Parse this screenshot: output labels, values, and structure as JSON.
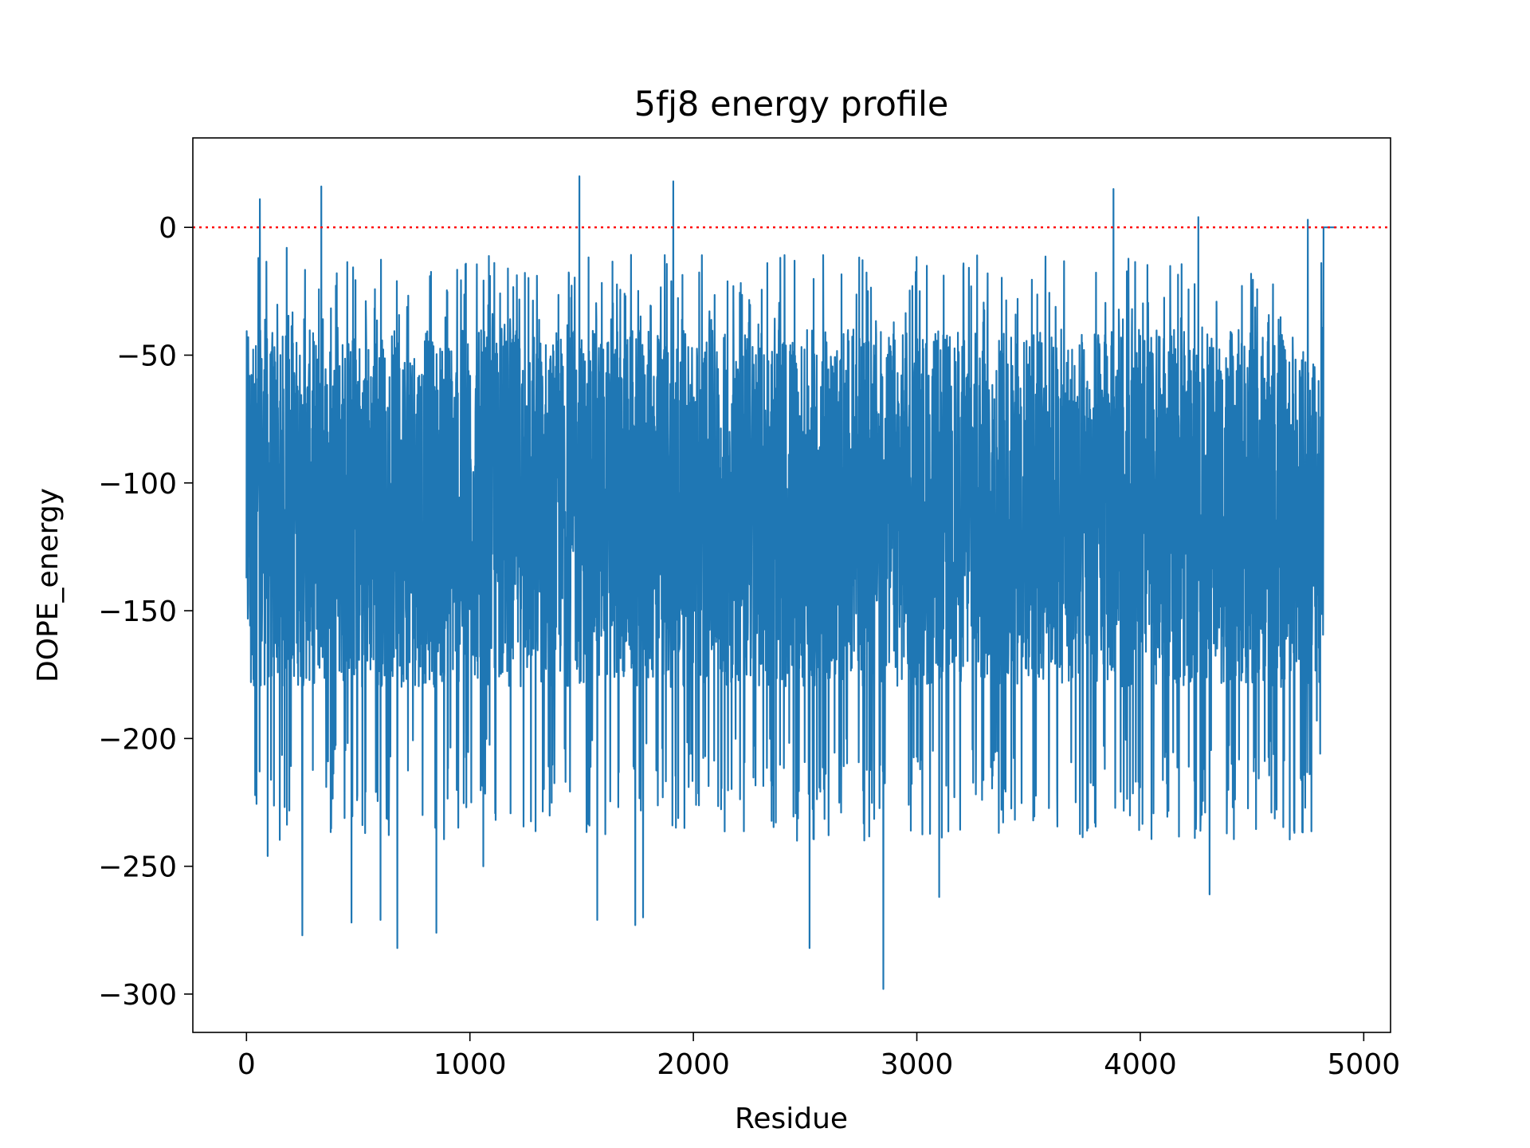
{
  "chart_data": {
    "type": "line",
    "title": "5fj8 energy profile",
    "xlabel": "Residue",
    "ylabel": "DOPE_energy",
    "xlim": [
      -240,
      5120
    ],
    "ylim": [
      -315,
      35
    ],
    "xticks": [
      0,
      1000,
      2000,
      3000,
      4000,
      5000
    ],
    "yticks": [
      0,
      -50,
      -100,
      -150,
      -200,
      -250,
      -300
    ],
    "x_tick_labels": [
      "0",
      "1000",
      "2000",
      "3000",
      "4000",
      "5000"
    ],
    "y_tick_labels": [
      "0",
      "−50",
      "−100",
      "−150",
      "−200",
      "−250",
      "−300"
    ],
    "grid": false,
    "reference_line": {
      "y": 0,
      "color": "#ff0000",
      "style": "dotted"
    },
    "series": [
      {
        "color": "#1f77b4",
        "x_start": 0,
        "x_step": 1,
        "n_points": 4880,
        "dense_range": [
          0,
          4810
        ],
        "typical_range": [
          -180,
          -40
        ],
        "flat_tail": {
          "from": 4820,
          "to": 4880,
          "value": 0
        },
        "extremes": [
          {
            "x": 8,
            "y": -43
          },
          {
            "x": 20,
            "y": -178
          },
          {
            "x": 60,
            "y": 11
          },
          {
            "x": 95,
            "y": -246
          },
          {
            "x": 180,
            "y": -8
          },
          {
            "x": 250,
            "y": -277
          },
          {
            "x": 335,
            "y": 16
          },
          {
            "x": 470,
            "y": -272
          },
          {
            "x": 600,
            "y": -271
          },
          {
            "x": 675,
            "y": -282
          },
          {
            "x": 850,
            "y": -276
          },
          {
            "x": 1060,
            "y": -250
          },
          {
            "x": 1490,
            "y": 20
          },
          {
            "x": 1570,
            "y": -271
          },
          {
            "x": 1740,
            "y": -273
          },
          {
            "x": 1775,
            "y": -270
          },
          {
            "x": 1910,
            "y": 18
          },
          {
            "x": 2520,
            "y": -282
          },
          {
            "x": 2850,
            "y": -298
          },
          {
            "x": 3100,
            "y": -262
          },
          {
            "x": 3880,
            "y": 15
          },
          {
            "x": 4260,
            "y": 4
          },
          {
            "x": 4310,
            "y": -261
          },
          {
            "x": 4750,
            "y": 3
          },
          {
            "x": 4790,
            "y": -193
          }
        ]
      }
    ]
  }
}
